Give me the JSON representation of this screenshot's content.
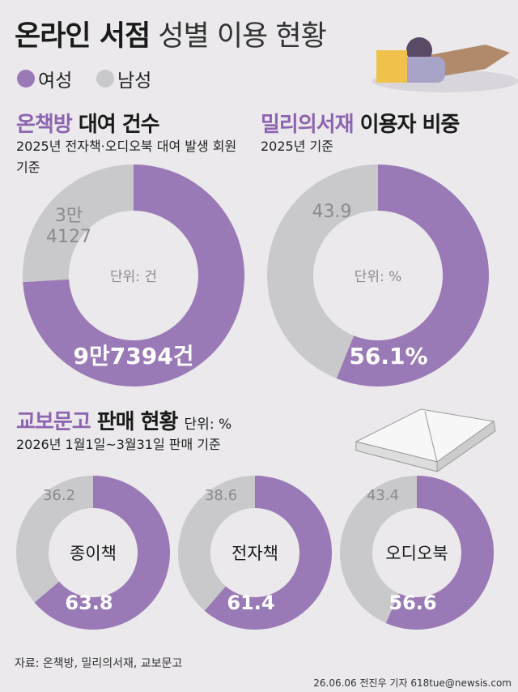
{
  "header": {
    "title_bold": "온라인 서점",
    "title_light": "성별 이용 현황"
  },
  "sections": [
    {
      "title_highlight": "온책방",
      "title_rest": "대여 건수",
      "subtitle": "2025년 전자책·오디오북 대여 발생 회원 기준"
    },
    {
      "title_highlight": "밀리의서재",
      "title_rest": "이용자 비중",
      "subtitle": "2025년 기준"
    },
    {
      "title_highlight": "교보문고",
      "title_rest": "판매 현황",
      "unit": "단위: %",
      "subtitle": "2026년 1월1일~3월31일 판매 기준"
    }
  ],
  "chart_data": [
    {
      "type": "pie",
      "categories": [
        "여성",
        "남성"
      ],
      "values": [
        97394,
        34127
      ],
      "value_labels": [
        "9만7394건",
        "3만 4127"
      ],
      "colors": [
        "#9a7ab6",
        "#c9c8ca"
      ],
      "center_label": "단위: 건"
    },
    {
      "type": "pie",
      "categories": [
        "여성",
        "남성"
      ],
      "values": [
        56.1,
        43.9
      ],
      "value_labels": [
        "56.1%",
        "43.9"
      ],
      "colors": [
        "#9a7ab6",
        "#c9c8ca"
      ],
      "center_label": "단위: %"
    },
    {
      "type": "pie",
      "categories": [
        "여성",
        "남성"
      ],
      "values": [
        63.8,
        36.2
      ],
      "colors": [
        "#9a7ab6",
        "#c9c8ca"
      ],
      "center_label": "종이책"
    },
    {
      "type": "pie",
      "categories": [
        "여성",
        "남성"
      ],
      "values": [
        61.4,
        38.6
      ],
      "colors": [
        "#9a7ab6",
        "#c9c8ca"
      ],
      "center_label": "전자책"
    },
    {
      "type": "pie",
      "categories": [
        "여성",
        "남성"
      ],
      "values": [
        56.6,
        43.4
      ],
      "colors": [
        "#9a7ab6",
        "#c9c8ca"
      ],
      "center_label": "오디오북"
    }
  ],
  "footer": {
    "source": "자료: 온책방, 밀리의서재, 교보문고",
    "credit": "26.06.06 전진우 기자 618tue@newsis.com"
  }
}
